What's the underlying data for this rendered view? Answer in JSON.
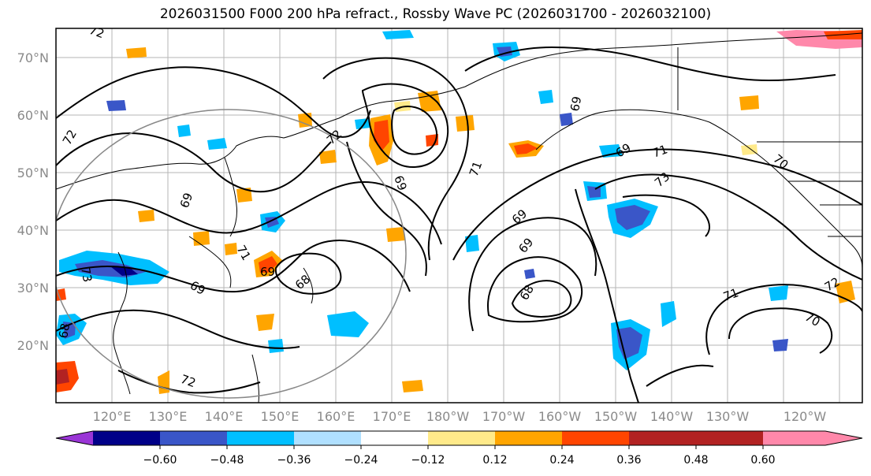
{
  "title": "2026031500 F000 200 hPa refract., Rossby Wave PC (2026031700 - 2026032100)",
  "map": {
    "lat_ticks": [
      "70°N",
      "60°N",
      "50°N",
      "40°N",
      "30°N",
      "20°N"
    ],
    "lon_ticks": [
      "120°E",
      "130°E",
      "140°E",
      "150°E",
      "160°E",
      "170°E",
      "180°W",
      "170°W",
      "160°W",
      "150°W",
      "140°W",
      "130°W",
      "120°W"
    ],
    "contour_labels": [
      "72",
      "72",
      "72",
      "69",
      "69",
      "69",
      "68",
      "73",
      "71",
      "71",
      "69",
      "69",
      "69",
      "73",
      "70",
      "70",
      "72",
      "71",
      "68",
      "69",
      "71",
      "69",
      "68",
      "72"
    ]
  },
  "colorbar": {
    "labels": [
      "−0.60",
      "−0.48",
      "−0.36",
      "−0.24",
      "−0.12",
      "0.12",
      "0.24",
      "0.36",
      "0.48",
      "0.60"
    ],
    "colors": [
      "#9a35d6",
      "#000088",
      "#3a56c8",
      "#00bfff",
      "#b0e0ff",
      "#ffffff",
      "#ffea8a",
      "#ffa500",
      "#ff4500",
      "#b22222",
      "#ff88aa"
    ]
  }
}
